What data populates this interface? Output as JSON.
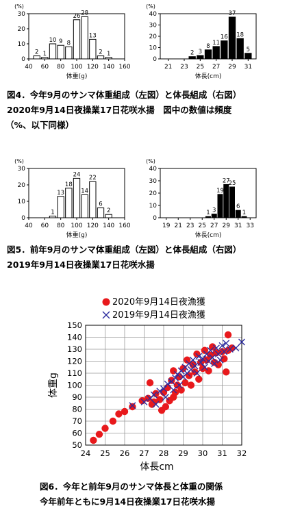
{
  "chart_data": [
    {
      "type": "bar",
      "ylabel": "(%)",
      "xlabel": "体重(g)",
      "ylim": [
        0,
        30
      ],
      "xlim": [
        40,
        160
      ],
      "style": "hollow",
      "categories": [
        50,
        60,
        70,
        80,
        90,
        100,
        110,
        120,
        130,
        140
      ],
      "values": [
        2,
        1,
        10,
        9,
        8,
        26,
        28,
        13,
        2,
        1
      ],
      "xticks": [
        40,
        60,
        80,
        100,
        120,
        140,
        160
      ]
    },
    {
      "type": "bar",
      "ylabel": "(%)",
      "xlabel": "体長(cm)",
      "ylim": [
        0,
        40
      ],
      "xlim": [
        20,
        32
      ],
      "style": "filled",
      "categories": [
        24,
        25,
        26,
        27,
        28,
        29,
        30,
        31
      ],
      "values": [
        2,
        3,
        8,
        11,
        16,
        37,
        18,
        5
      ],
      "xticks": [
        21,
        23,
        25,
        27,
        29,
        31
      ]
    },
    {
      "type": "bar",
      "ylabel": "(%)",
      "xlabel": "体重(g)",
      "ylim": [
        0,
        30
      ],
      "xlim": [
        40,
        160
      ],
      "style": "hollow",
      "categories": [
        70,
        80,
        90,
        100,
        110,
        120,
        130,
        140
      ],
      "values": [
        1,
        13,
        18,
        24,
        14,
        22,
        6,
        2
      ],
      "xticks": [
        40,
        60,
        80,
        100,
        120,
        140,
        160
      ]
    },
    {
      "type": "bar",
      "ylabel": "(%)",
      "xlabel": "体長(cm)",
      "ylim": [
        0,
        40
      ],
      "xlim": [
        18,
        34
      ],
      "style": "filled",
      "categories": [
        26,
        27,
        28,
        29,
        30,
        31,
        32
      ],
      "values": [
        1,
        3,
        19,
        27,
        25,
        6,
        1
      ],
      "xticks": [
        19,
        21,
        23,
        25,
        27,
        29,
        31,
        33
      ]
    },
    {
      "type": "scatter",
      "xlabel": "体長cm",
      "ylabel": "体重g",
      "xlim": [
        24,
        32
      ],
      "ylim": [
        50,
        150
      ],
      "xticks": [
        24,
        25,
        26,
        27,
        28,
        29,
        30,
        31,
        32
      ],
      "yticks": [
        50,
        60,
        70,
        80,
        90,
        100,
        110,
        120,
        130,
        140,
        150
      ],
      "grid": true,
      "legend": "top",
      "series": [
        {
          "name": "2020年9月14日夜漁獲",
          "marker": "circle",
          "color": "#e8191c",
          "points": [
            [
              24.4,
              54
            ],
            [
              24.7,
              59
            ],
            [
              25.0,
              64
            ],
            [
              25.4,
              70
            ],
            [
              25.7,
              76
            ],
            [
              26.0,
              78
            ],
            [
              26.4,
              82
            ],
            [
              26.9,
              87
            ],
            [
              27.2,
              89
            ],
            [
              27.3,
              102
            ],
            [
              27.4,
              84
            ],
            [
              27.5,
              86
            ],
            [
              27.6,
              93
            ],
            [
              27.8,
              88
            ],
            [
              27.9,
              79
            ],
            [
              28.0,
              94
            ],
            [
              28.1,
              82
            ],
            [
              28.2,
              98
            ],
            [
              28.3,
              87
            ],
            [
              28.4,
              104
            ],
            [
              28.5,
              90
            ],
            [
              28.5,
              112
            ],
            [
              28.6,
              94
            ],
            [
              28.7,
              100
            ],
            [
              28.8,
              107
            ],
            [
              28.9,
              96
            ],
            [
              29.0,
              114
            ],
            [
              29.1,
              102
            ],
            [
              29.2,
              121
            ],
            [
              29.3,
              108
            ],
            [
              29.4,
              100
            ],
            [
              29.5,
              117
            ],
            [
              29.6,
              111
            ],
            [
              29.7,
              126
            ],
            [
              29.8,
              105
            ],
            [
              29.9,
              119
            ],
            [
              30.0,
              114
            ],
            [
              30.1,
              129
            ],
            [
              30.2,
              121
            ],
            [
              30.3,
              112
            ],
            [
              30.4,
              125
            ],
            [
              30.5,
              132
            ],
            [
              30.6,
              119
            ],
            [
              30.7,
              127
            ],
            [
              30.8,
              117
            ],
            [
              31.0,
              128
            ],
            [
              31.1,
              122
            ],
            [
              31.2,
              111
            ],
            [
              31.3,
              129
            ],
            [
              31.5,
              131
            ],
            [
              31.3,
              142
            ]
          ]
        },
        {
          "name": "2019年9月14日夜漁獲",
          "marker": "x",
          "color": "#2b2b9e",
          "points": [
            [
              26.4,
              83
            ],
            [
              27.0,
              86
            ],
            [
              27.3,
              89
            ],
            [
              27.5,
              92
            ],
            [
              27.6,
              84
            ],
            [
              27.8,
              95
            ],
            [
              28.0,
              97
            ],
            [
              28.1,
              90
            ],
            [
              28.2,
              101
            ],
            [
              28.4,
              103
            ],
            [
              28.5,
              96
            ],
            [
              28.6,
              106
            ],
            [
              28.7,
              109
            ],
            [
              28.8,
              100
            ],
            [
              28.9,
              112
            ],
            [
              29.0,
              107
            ],
            [
              29.1,
              115
            ],
            [
              29.2,
              110
            ],
            [
              29.3,
              118
            ],
            [
              29.4,
              113
            ],
            [
              29.5,
              121
            ],
            [
              29.6,
              116
            ],
            [
              29.7,
              110
            ],
            [
              29.8,
              124
            ],
            [
              29.9,
              119
            ],
            [
              30.0,
              122
            ],
            [
              30.1,
              115
            ],
            [
              30.2,
              126
            ],
            [
              30.3,
              120
            ],
            [
              30.4,
              129
            ],
            [
              30.5,
              123
            ],
            [
              30.6,
              118
            ],
            [
              30.7,
              131
            ],
            [
              30.8,
              126
            ],
            [
              30.9,
              121
            ],
            [
              31.0,
              133
            ],
            [
              31.1,
              128
            ],
            [
              31.2,
              135
            ],
            [
              31.4,
              130
            ],
            [
              31.7,
              131
            ],
            [
              32.0,
              136
            ]
          ]
        }
      ]
    }
  ],
  "captions": {
    "fig4_line1": "図4．今年9月のサンマ体重組成（左図）と体長組成（右図）",
    "fig4_line2": "2020年9月14日夜操業17日花咲水揚　図中の数値は頻度",
    "fig4_line3": "（%、以下同様）",
    "fig5_line1": "図5．前年9月のサンマ体重組成（左図）と体長組成（右図）",
    "fig5_line2": "2019年9月14日夜操業17日花咲水揚",
    "fig6_line1": "図6．今年と前年9月のサンマ体長と体重の関係",
    "fig6_line2": "今年前年ともに9月14日夜操業17日花咲水揚"
  }
}
